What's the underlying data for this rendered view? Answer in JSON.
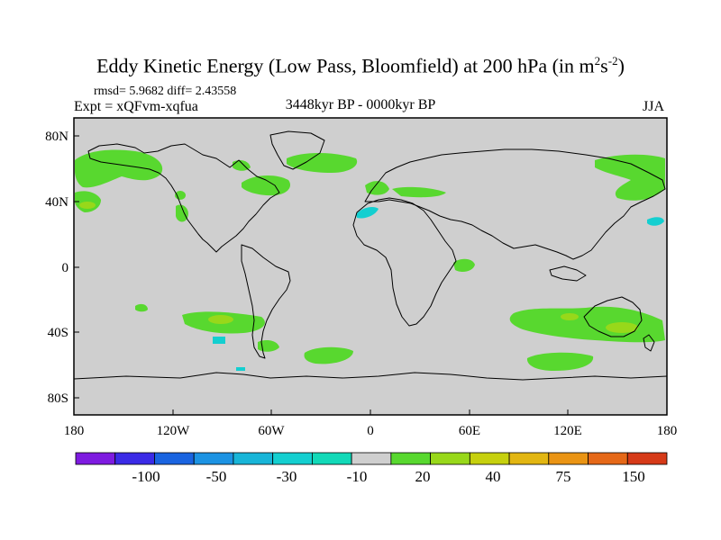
{
  "title": {
    "main": "Eddy Kinetic Energy (Low Pass, Bloomfield) at 200 hPa (in m",
    "sup1": "2",
    "s": "s",
    "sup2": "-2",
    "close": ")"
  },
  "stats": "rmsd= 5.9682 diff= 2.43558",
  "expt": "Expt = xQFvm-xqfua",
  "period": "3448kyr BP - 0000kyr BP",
  "season": "JJA",
  "lat_labels": [
    "80N",
    "40N",
    "0",
    "40S",
    "80S"
  ],
  "lon_labels": [
    "180",
    "120W",
    "60W",
    "0",
    "60E",
    "120E",
    "180"
  ],
  "colorbar": {
    "colors": [
      "#7e1be0",
      "#3b2be6",
      "#1a64e0",
      "#1c93e3",
      "#18b5d8",
      "#14cfd0",
      "#12d9b8",
      "#cfcfcf",
      "#58d82f",
      "#98d81a",
      "#c6d00e",
      "#e2b612",
      "#ea9414",
      "#e56818",
      "#d63a18"
    ],
    "labels": [
      "-100",
      "-50",
      "-30",
      "-10",
      "20",
      "40",
      "75",
      "150"
    ]
  },
  "colors": {
    "ocean_land_background": "#cfcfcf",
    "anomaly_20": "#58d82f",
    "anomaly_40": "#98d81a",
    "anomaly_neg_10": "#14cfd0"
  }
}
